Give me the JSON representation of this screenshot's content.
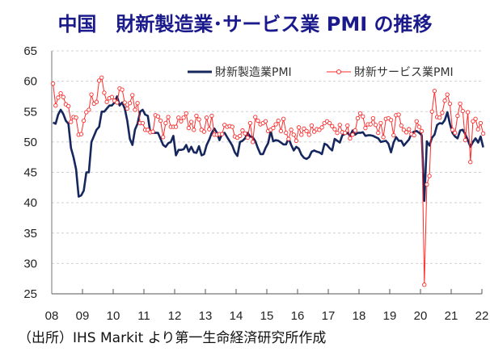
{
  "title": "中国　財新製造業･サービス業 PMI の推移",
  "source": "（出所）IHS Markit より第一生命経済研究所作成",
  "chart_data": {
    "type": "line",
    "title": "中国　財新製造業･サービス業 PMI の推移",
    "xlabel": "",
    "ylabel": "",
    "ylim": [
      25,
      65
    ],
    "yticks": [
      25,
      30,
      35,
      40,
      45,
      50,
      55,
      60,
      65
    ],
    "xticklabels": [
      "08",
      "09",
      "10",
      "11",
      "12",
      "13",
      "14",
      "15",
      "16",
      "17",
      "18",
      "19",
      "20",
      "21",
      "22"
    ],
    "x_start": "2008-01",
    "x_frequency": "monthly",
    "grid": "horizontal dashed",
    "legend": "top-right",
    "series": [
      {
        "name": "財新製造業PMI",
        "color": "#16275e",
        "marker": "none",
        "values": [
          53.2,
          53.0,
          54.5,
          55.3,
          54.6,
          53.5,
          53.0,
          49.0,
          47.5,
          45.5,
          41.0,
          41.2,
          42.0,
          45.0,
          45.0,
          50.0,
          51.0,
          52.0,
          52.5,
          55.0,
          55.0,
          55.5,
          56.0,
          56.0,
          56.5,
          57.5,
          56.0,
          56.5,
          55.5,
          53.5,
          50.5,
          49.5,
          52.0,
          53.0,
          55.0,
          55.3,
          54.5,
          54.3,
          51.5,
          51.5,
          51.5,
          51.5,
          50.5,
          49.5,
          49.2,
          49.8,
          50.0,
          51.0,
          47.8,
          48.7,
          48.7,
          48.8,
          49.5,
          48.4,
          49.2,
          48.3,
          48.2,
          49.3,
          47.8,
          48.0,
          49.5,
          50.4,
          51.5,
          52.2,
          51.5,
          50.3,
          51.3,
          51.5,
          50.8,
          50.1,
          49.4,
          48.3,
          47.7,
          50.0,
          50.2,
          50.6,
          51.5,
          50.9,
          50.8,
          50.1,
          49.0,
          48.0,
          48.0,
          49.0,
          49.8,
          51.8,
          50.1,
          50.3,
          50.2,
          49.9,
          49.6,
          49.6,
          50.6,
          49.5,
          48.6,
          49.2,
          48.9,
          47.9,
          47.4,
          47.2,
          47.5,
          48.4,
          48.6,
          48.4,
          48.3,
          48.0,
          49.7,
          49.5,
          49.0,
          48.6,
          50.5,
          50.2,
          49.9,
          51.1,
          51.3,
          51.5,
          51.0,
          51.9,
          51.2,
          51.5,
          51.5,
          51.6,
          51.0,
          51.1,
          51.1,
          51.0,
          50.8,
          50.6,
          50.0,
          50.1,
          50.2,
          49.7,
          48.3,
          49.9,
          50.8,
          50.2,
          50.2,
          49.4,
          49.9,
          50.4,
          51.4,
          51.7,
          51.8,
          51.5,
          51.1,
          40.3,
          50.1,
          49.4,
          50.7,
          51.2,
          52.8,
          53.1,
          53.0,
          53.6,
          54.9,
          53.0,
          51.5,
          50.9,
          50.6,
          51.9,
          52.0,
          51.3,
          50.3,
          49.2,
          50.0,
          50.6,
          49.9,
          50.9,
          49.1
        ]
      },
      {
        "name": "財新サービス業PMI",
        "color": "#ff2a2a",
        "marker": "circle",
        "values": [
          59.6,
          56.0,
          57.3,
          58.0,
          57.4,
          56.2,
          55.9,
          53.3,
          54.1,
          54.0,
          51.2,
          51.3,
          53.5,
          54.9,
          55.3,
          57.8,
          56.3,
          56.6,
          60.1,
          60.6,
          58.1,
          56.6,
          57.2,
          57.4,
          56.8,
          56.5,
          58.8,
          58.6,
          56.5,
          55.5,
          56.4,
          57.7,
          55.3,
          56.4,
          53.1,
          53.1,
          52.0,
          52.0,
          51.6,
          51.7,
          54.4,
          54.2,
          53.5,
          50.8,
          53.1,
          54.1,
          52.5,
          52.5,
          52.5,
          54.0,
          53.4,
          54.0,
          54.7,
          52.3,
          53.3,
          52.0,
          54.3,
          53.7,
          52.0,
          51.7,
          54.0,
          52.1,
          54.3,
          51.2,
          51.2,
          51.3,
          51.3,
          52.8,
          52.5,
          52.6,
          52.5,
          50.9,
          50.7,
          51.0,
          51.9,
          51.4,
          50.7,
          53.1,
          50.0,
          54.1,
          53.5,
          52.9,
          53.1,
          53.4,
          51.8,
          52.0,
          52.3,
          52.9,
          53.5,
          51.8,
          53.8,
          51.5,
          50.5,
          52.0,
          51.2,
          50.2,
          52.4,
          51.2,
          52.2,
          51.8,
          51.2,
          52.7,
          51.7,
          52.1,
          52.0,
          52.4,
          53.1,
          53.4,
          53.1,
          52.6,
          52.1,
          51.5,
          52.8,
          51.6,
          51.5,
          52.7,
          50.6,
          51.2,
          51.9,
          53.9,
          54.7,
          54.2,
          52.3,
          52.9,
          52.9,
          53.9,
          52.8,
          51.5,
          53.1,
          50.8,
          53.8,
          53.9,
          53.6,
          51.1,
          54.4,
          54.5,
          52.7,
          52.0,
          51.6,
          52.1,
          51.3,
          51.1,
          53.4,
          52.5,
          51.8,
          26.5,
          43.0,
          44.4,
          55.0,
          58.4,
          54.1,
          54.0,
          54.8,
          56.8,
          57.8,
          56.3,
          52.0,
          51.5,
          54.3,
          56.3,
          55.1,
          50.3,
          54.9,
          46.7,
          53.4,
          53.8,
          52.1,
          53.1,
          51.4
        ]
      }
    ]
  }
}
